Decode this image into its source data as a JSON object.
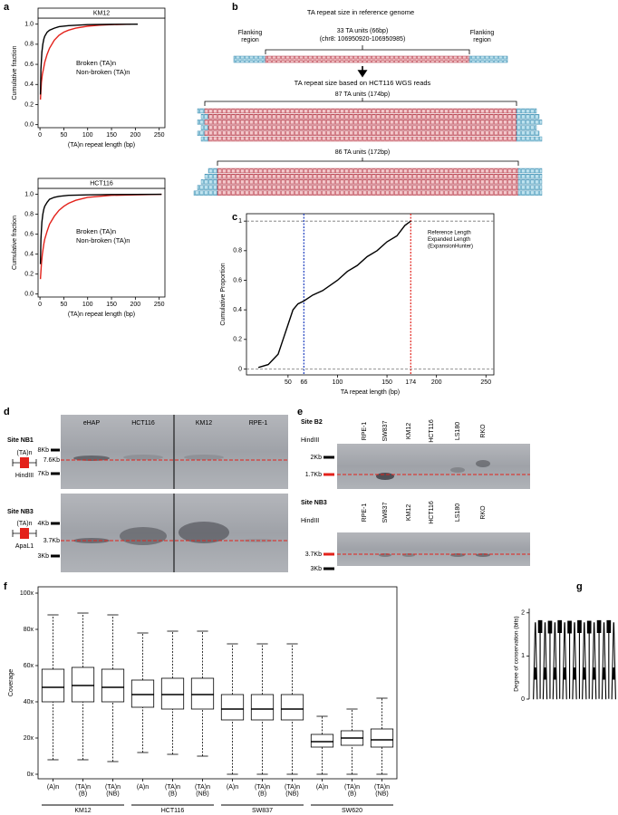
{
  "panel_labels": [
    "a",
    "b",
    "c",
    "d",
    "e",
    "f",
    "g"
  ],
  "chart_data": [
    {
      "type": "line",
      "title": "KM12",
      "xlabel": "(TA)n repeat length (bp)",
      "ylabel": "Cumulative fraction",
      "xlim": [
        -4,
        262
      ],
      "xticks": [
        0,
        50,
        100,
        150,
        200,
        250
      ],
      "ylim": [
        -0.03,
        1.06
      ],
      "yticks": [
        {
          "value": 0,
          "label": "0.0"
        },
        0.2,
        0.4,
        0.6,
        0.8,
        {
          "value": 1,
          "label": "1.0"
        }
      ],
      "series": [
        {
          "name": "Broken (TA)n",
          "color": "#e3221b",
          "x": [
            1,
            3,
            5,
            8,
            10,
            15,
            20,
            30,
            40,
            50,
            60,
            75,
            100,
            125,
            150,
            190
          ],
          "values": [
            0.25,
            0.42,
            0.5,
            0.57,
            0.62,
            0.7,
            0.76,
            0.84,
            0.89,
            0.92,
            0.94,
            0.96,
            0.98,
            0.99,
            0.995,
            1.0
          ]
        },
        {
          "name": "Non-broken (TA)n",
          "color": "#000000",
          "x": [
            1,
            2,
            4,
            6,
            8,
            10,
            15,
            20,
            30,
            40,
            60,
            100,
            150,
            205
          ],
          "values": [
            0.3,
            0.55,
            0.72,
            0.8,
            0.85,
            0.88,
            0.92,
            0.94,
            0.96,
            0.975,
            0.985,
            0.995,
            0.998,
            1.0
          ]
        }
      ]
    },
    {
      "type": "line",
      "title": "HCT116",
      "xlabel": "(TA)n repeat length (bp)",
      "ylabel": "Cumulative fraction",
      "xlim": [
        -4,
        262
      ],
      "xticks": [
        0,
        50,
        100,
        150,
        200,
        250
      ],
      "ylim": [
        -0.03,
        1.06
      ],
      "yticks": [
        {
          "value": 0,
          "label": "0.0"
        },
        0.2,
        0.4,
        0.6,
        0.8,
        {
          "value": 1,
          "label": "1.0"
        }
      ],
      "series": [
        {
          "name": "Broken (TA)n",
          "color": "#e3221b",
          "x": [
            1,
            3,
            5,
            8,
            10,
            15,
            20,
            30,
            40,
            50,
            60,
            75,
            100,
            150,
            200,
            255
          ],
          "values": [
            0.15,
            0.3,
            0.4,
            0.5,
            0.55,
            0.63,
            0.7,
            0.78,
            0.84,
            0.88,
            0.91,
            0.94,
            0.97,
            0.99,
            0.995,
            1.0
          ]
        },
        {
          "name": "Non-broken (TA)n",
          "color": "#000000",
          "x": [
            1,
            2,
            4,
            6,
            8,
            10,
            15,
            20,
            30,
            40,
            60,
            100,
            150,
            200,
            255
          ],
          "values": [
            0.3,
            0.55,
            0.72,
            0.8,
            0.85,
            0.88,
            0.92,
            0.95,
            0.97,
            0.98,
            0.99,
            0.995,
            0.998,
            0.999,
            1.0
          ]
        }
      ]
    },
    {
      "type": "line",
      "xlabel": "TA repeat length (bp)",
      "ylabel": "Cumulative Proportion",
      "xlim": [
        8,
        258
      ],
      "xticks": [
        50,
        100,
        150,
        200,
        250
      ],
      "ylim": [
        -0.04,
        1.05
      ],
      "yticks": [
        0,
        0.2,
        0.4,
        0.6,
        0.8,
        1
      ],
      "hlines": [
        0,
        1
      ],
      "reference_lines": [
        {
          "value": 66,
          "color": "#1f3fbf",
          "name": [
            "Reference Length"
          ]
        },
        {
          "value": 174,
          "color": "#e3221b",
          "name": [
            "Expanded Length",
            "(ExpansionHunter)"
          ]
        }
      ],
      "series": [
        {
          "color": "#000000",
          "x": [
            20,
            30,
            40,
            45,
            50,
            55,
            60,
            66,
            75,
            85,
            100,
            110,
            120,
            130,
            140,
            150,
            160,
            168,
            174
          ],
          "values": [
            0.01,
            0.03,
            0.1,
            0.2,
            0.3,
            0.4,
            0.44,
            0.46,
            0.5,
            0.53,
            0.6,
            0.66,
            0.7,
            0.76,
            0.8,
            0.86,
            0.9,
            0.97,
            1.0
          ]
        }
      ]
    },
    {
      "type": "box",
      "ylabel": "Coverage",
      "ylim": [
        -2.5,
        103.5
      ],
      "yticks": [
        {
          "value": 0,
          "label": "0x"
        },
        {
          "value": 20,
          "label": "20x"
        },
        {
          "value": 40,
          "label": "40x"
        },
        {
          "value": 60,
          "label": "60x"
        },
        {
          "value": 80,
          "label": "80x"
        },
        {
          "value": 100,
          "label": "100x"
        }
      ],
      "categories": [
        [
          "(A)n"
        ],
        [
          "(TA)n",
          "(B)"
        ],
        [
          "(TA)n",
          "(NB)"
        ]
      ],
      "series": [
        {
          "name": "KM12",
          "color": "#e3221b",
          "boxes": [
            {
              "low": 8,
              "q1": 40,
              "median": 48,
              "q3": 58,
              "high": 88
            },
            {
              "low": 8,
              "q1": 40,
              "median": 49,
              "q3": 59,
              "high": 89
            },
            {
              "low": 7,
              "q1": 40,
              "median": 48,
              "q3": 58,
              "high": 88
            }
          ]
        },
        {
          "name": "HCT116",
          "color": "#e3221b",
          "boxes": [
            {
              "low": 12,
              "q1": 37,
              "median": 44,
              "q3": 52,
              "high": 78
            },
            {
              "low": 11,
              "q1": 36,
              "median": 44,
              "q3": 53,
              "high": 79
            },
            {
              "low": 10,
              "q1": 36,
              "median": 44,
              "q3": 53,
              "high": 79
            }
          ]
        },
        {
          "name": "SW837",
          "color": "#4a86c5",
          "boxes": [
            {
              "low": 0,
              "q1": 30,
              "median": 36,
              "q3": 44,
              "high": 72
            },
            {
              "low": 0,
              "q1": 30,
              "median": 36,
              "q3": 44,
              "high": 72
            },
            {
              "low": 0,
              "q1": 30,
              "median": 36,
              "q3": 44,
              "high": 72
            }
          ]
        },
        {
          "name": "SW620",
          "color": "#4a86c5",
          "boxes": [
            {
              "low": 0,
              "q1": 15,
              "median": 18,
              "q3": 22,
              "high": 32
            },
            {
              "low": 0,
              "q1": 16,
              "median": 20,
              "q3": 24,
              "high": 36
            },
            {
              "low": 0,
              "q1": 15,
              "median": 19,
              "q3": 25,
              "high": 42
            }
          ]
        }
      ]
    },
    {
      "type": "logo",
      "ylabel": "Degree of conservation (bits)",
      "ylim": [
        0,
        2.1
      ],
      "yticks": [
        0,
        1,
        2
      ],
      "colors": {
        "A": "#e3221b",
        "T": "#1a9a3a"
      },
      "letters": [
        "A",
        "T",
        "A",
        "T",
        "A",
        "T",
        "A",
        "T",
        "A",
        "T",
        "A",
        "T",
        "A",
        "T",
        "A",
        "T",
        "A"
      ],
      "values": [
        1.85,
        1.9,
        1.85,
        1.88,
        1.85,
        1.9,
        1.85,
        1.88,
        1.85,
        1.9,
        1.86,
        1.88,
        1.86,
        1.9,
        1.86,
        1.9,
        1.85
      ]
    }
  ],
  "diagram_b": {
    "title": "TA repeat size in reference genome",
    "flank_left": [
      "Flanking",
      "region"
    ],
    "flank_right": [
      "Flanking",
      "region"
    ],
    "reference": [
      "33 TA units (66bp)",
      "(chr8: 106950920-106950985)"
    ],
    "reads_title": "TA repeat size based on HCT116 WGS reads",
    "groups": [
      "87 TA units (174bp)",
      "86 TA units (172bp)"
    ]
  },
  "blot_d": {
    "lanes": [
      {
        "name": "eHAP",
        "color": "#4a86c5"
      },
      {
        "name": "HCT116",
        "color": "#e3221b"
      },
      {
        "name": "KM12",
        "color": "#e3221b"
      },
      {
        "name": "RPE-1",
        "color": "#4a86c5"
      }
    ],
    "sites": [
      {
        "name": "Site NB1",
        "repeat": "(TA)n",
        "enzyme": "HindIII",
        "markers": [
          "8Kb",
          "7Kb"
        ],
        "band": "7.6Kb"
      },
      {
        "name": "Site NB3",
        "repeat": "(TA)n",
        "enzyme": "ApaL1",
        "markers": [
          "4Kb",
          "3Kb"
        ],
        "band": "3.7Kb"
      }
    ]
  },
  "blot_e": {
    "lanes": [
      {
        "name": "RPE-1",
        "color": "#4a86c5"
      },
      {
        "name": "SW837",
        "color": "#4a86c5"
      },
      {
        "name": "KM12",
        "color": "#e3221b"
      },
      {
        "name": "HCT116",
        "color": "#e3221b"
      },
      {
        "name": "LS180",
        "color": "#e3221b"
      },
      {
        "name": "RKO",
        "color": "#e3221b"
      }
    ],
    "sites": [
      {
        "name": "Site B2",
        "enzyme": "HindIII",
        "markers": [
          "2Kb"
        ],
        "band": "1.7Kb"
      },
      {
        "name": "Site NB3",
        "enzyme": "HindIII",
        "markers": [
          "3Kb"
        ],
        "band": "3.7Kb"
      }
    ]
  }
}
